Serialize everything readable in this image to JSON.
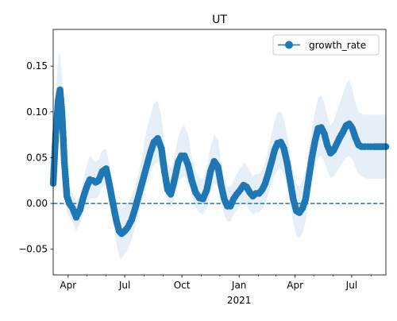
{
  "chart_data": {
    "type": "line",
    "title": "UT",
    "xlabel": "",
    "ylabel": "",
    "x_range": [
      "2020-03-08",
      "2021-08-25"
    ],
    "ylim": [
      -0.078,
      0.19
    ],
    "y_ticks": [
      -0.05,
      0.0,
      0.05,
      0.1,
      0.15
    ],
    "y_tick_labels": [
      "−0.05",
      "0.00",
      "0.05",
      "0.10",
      "0.15"
    ],
    "x_ticks": [
      {
        "date": "2020-04-01",
        "label": "Apr",
        "year": ""
      },
      {
        "date": "2020-07-01",
        "label": "Jul",
        "year": ""
      },
      {
        "date": "2020-10-01",
        "label": "Oct",
        "year": ""
      },
      {
        "date": "2021-01-01",
        "label": "Jan",
        "year": "2021"
      },
      {
        "date": "2021-04-01",
        "label": "Apr",
        "year": ""
      },
      {
        "date": "2021-07-01",
        "label": "Jul",
        "year": ""
      }
    ],
    "grid": false,
    "legend_position": "top-right",
    "reference_line": {
      "y": 0,
      "style": "dashed"
    },
    "colors": {
      "line": "#1f77b4",
      "band": "#dbe8f5"
    },
    "series": [
      {
        "name": "growth_rate",
        "x": [
          "2020-03-08",
          "2020-03-12",
          "2020-03-16",
          "2020-03-19",
          "2020-03-22",
          "2020-03-26",
          "2020-03-30",
          "2020-04-03",
          "2020-04-08",
          "2020-04-14",
          "2020-04-20",
          "2020-04-26",
          "2020-05-02",
          "2020-05-06",
          "2020-05-11",
          "2020-05-15",
          "2020-05-20",
          "2020-05-26",
          "2020-06-01",
          "2020-06-06",
          "2020-06-12",
          "2020-06-18",
          "2020-06-22",
          "2020-06-26",
          "2020-07-01",
          "2020-07-06",
          "2020-07-12",
          "2020-07-18",
          "2020-07-24",
          "2020-07-30",
          "2020-08-05",
          "2020-08-11",
          "2020-08-17",
          "2020-08-23",
          "2020-08-29",
          "2020-09-03",
          "2020-09-08",
          "2020-09-13",
          "2020-09-17",
          "2020-09-21",
          "2020-09-25",
          "2020-09-30",
          "2020-10-05",
          "2020-10-11",
          "2020-10-17",
          "2020-10-23",
          "2020-10-29",
          "2020-11-04",
          "2020-11-10",
          "2020-11-16",
          "2020-11-22",
          "2020-11-28",
          "2020-12-03",
          "2020-12-08",
          "2020-12-13",
          "2020-12-18",
          "2020-12-23",
          "2020-12-28",
          "2021-01-03",
          "2021-01-08",
          "2021-01-13",
          "2021-01-18",
          "2021-01-23",
          "2021-01-28",
          "2021-02-02",
          "2021-02-07",
          "2021-02-12",
          "2021-02-17",
          "2021-02-22",
          "2021-02-27",
          "2021-03-04",
          "2021-03-09",
          "2021-03-14",
          "2021-03-19",
          "2021-03-24",
          "2021-03-29",
          "2021-04-03",
          "2021-04-08",
          "2021-04-13",
          "2021-04-18",
          "2021-04-23",
          "2021-04-28",
          "2021-05-03",
          "2021-05-08",
          "2021-05-13",
          "2021-05-18",
          "2021-05-23",
          "2021-05-28",
          "2021-06-02",
          "2021-06-07",
          "2021-06-12",
          "2021-06-17",
          "2021-06-22",
          "2021-06-27",
          "2021-07-02",
          "2021-07-07",
          "2021-07-12",
          "2021-07-17",
          "2021-07-22",
          "2021-07-27",
          "2021-08-01",
          "2021-08-06",
          "2021-08-12",
          "2021-08-18",
          "2021-08-25"
        ],
        "y": [
          0.022,
          0.075,
          0.112,
          0.124,
          0.1,
          0.045,
          0.008,
          0.0,
          -0.005,
          -0.015,
          -0.007,
          0.008,
          0.02,
          0.026,
          0.025,
          0.023,
          0.025,
          0.035,
          0.038,
          0.022,
          0.0,
          -0.02,
          -0.03,
          -0.033,
          -0.03,
          -0.026,
          -0.018,
          -0.005,
          0.01,
          0.025,
          0.04,
          0.055,
          0.067,
          0.071,
          0.06,
          0.035,
          0.015,
          0.01,
          0.02,
          0.032,
          0.045,
          0.052,
          0.052,
          0.042,
          0.025,
          0.012,
          0.006,
          0.005,
          0.015,
          0.035,
          0.046,
          0.04,
          0.02,
          0.005,
          -0.003,
          -0.003,
          0.005,
          0.01,
          0.015,
          0.02,
          0.018,
          0.012,
          0.008,
          0.011,
          0.011,
          0.015,
          0.022,
          0.033,
          0.045,
          0.058,
          0.066,
          0.067,
          0.06,
          0.045,
          0.025,
          0.005,
          -0.008,
          -0.01,
          -0.005,
          0.005,
          0.028,
          0.05,
          0.068,
          0.082,
          0.083,
          0.076,
          0.063,
          0.055,
          0.058,
          0.065,
          0.072,
          0.078,
          0.085,
          0.087,
          0.082,
          0.072,
          0.064,
          0.062,
          0.062,
          0.062,
          0.062,
          0.062,
          0.062,
          0.062,
          0.062
        ],
        "lower": [
          0.005,
          0.035,
          0.07,
          0.085,
          0.065,
          0.02,
          -0.01,
          -0.015,
          -0.02,
          -0.03,
          -0.022,
          -0.01,
          0.0,
          0.005,
          0.005,
          0.005,
          0.008,
          0.018,
          0.02,
          0.005,
          -0.02,
          -0.045,
          -0.058,
          -0.06,
          -0.055,
          -0.05,
          -0.04,
          -0.025,
          -0.01,
          0.005,
          0.02,
          0.032,
          0.042,
          0.045,
          0.038,
          0.02,
          0.0,
          -0.005,
          0.002,
          0.012,
          0.022,
          0.028,
          0.03,
          0.022,
          0.008,
          -0.005,
          -0.01,
          -0.012,
          -0.005,
          0.012,
          0.022,
          0.018,
          0.002,
          -0.012,
          -0.02,
          -0.02,
          -0.012,
          -0.008,
          -0.003,
          0.0,
          -0.002,
          -0.008,
          -0.012,
          -0.01,
          -0.01,
          -0.006,
          0.0,
          0.01,
          0.02,
          0.03,
          0.036,
          0.038,
          0.032,
          0.018,
          0.0,
          -0.02,
          -0.035,
          -0.038,
          -0.032,
          -0.02,
          0.002,
          0.022,
          0.038,
          0.05,
          0.052,
          0.046,
          0.035,
          0.028,
          0.03,
          0.035,
          0.04,
          0.045,
          0.05,
          0.052,
          0.048,
          0.04,
          0.032,
          0.03,
          0.028,
          0.027,
          0.027,
          0.027,
          0.027,
          0.027,
          0.027
        ],
        "upper": [
          0.04,
          0.12,
          0.16,
          0.165,
          0.14,
          0.075,
          0.03,
          0.018,
          0.012,
          0.002,
          0.01,
          0.028,
          0.045,
          0.052,
          0.048,
          0.045,
          0.048,
          0.058,
          0.06,
          0.045,
          0.025,
          0.005,
          -0.002,
          -0.005,
          -0.003,
          0.0,
          0.008,
          0.02,
          0.035,
          0.055,
          0.08,
          0.095,
          0.11,
          0.112,
          0.095,
          0.065,
          0.045,
          0.038,
          0.045,
          0.058,
          0.072,
          0.082,
          0.085,
          0.075,
          0.05,
          0.035,
          0.028,
          0.027,
          0.04,
          0.062,
          0.075,
          0.07,
          0.045,
          0.028,
          0.018,
          0.018,
          0.025,
          0.032,
          0.038,
          0.045,
          0.042,
          0.035,
          0.03,
          0.032,
          0.032,
          0.036,
          0.045,
          0.06,
          0.075,
          0.09,
          0.1,
          0.1,
          0.092,
          0.075,
          0.055,
          0.035,
          0.022,
          0.018,
          0.025,
          0.038,
          0.06,
          0.082,
          0.1,
          0.115,
          0.118,
          0.11,
          0.095,
          0.085,
          0.09,
          0.1,
          0.11,
          0.12,
          0.13,
          0.135,
          0.125,
          0.11,
          0.1,
          0.098,
          0.097,
          0.097,
          0.097,
          0.097,
          0.097,
          0.097,
          0.097
        ]
      }
    ]
  }
}
